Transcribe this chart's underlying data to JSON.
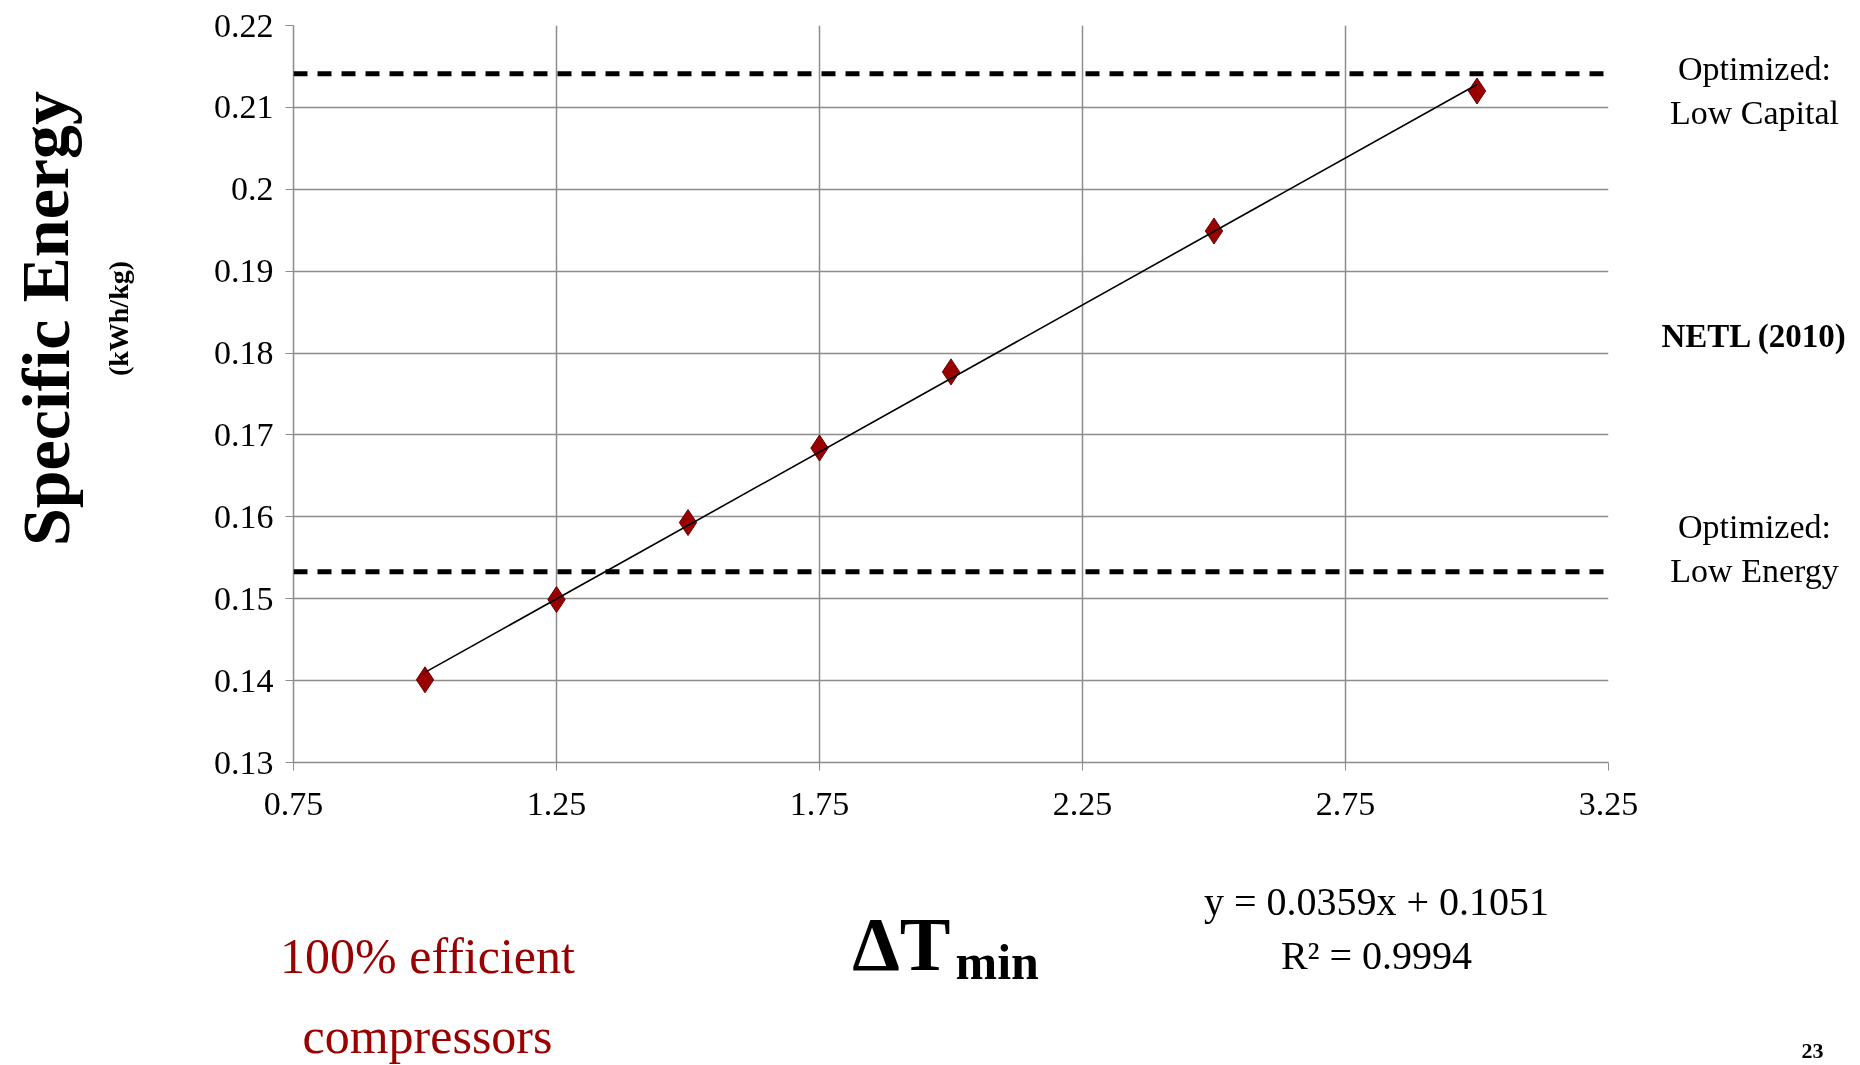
{
  "chart_data": {
    "type": "scatter",
    "xlabel": "ΔT$_{min}$",
    "ylabel": "Specific Energy (kWh/kg)",
    "xlim": [
      0.75,
      3.25
    ],
    "xticks": [
      0.75,
      1.25,
      1.75,
      2.25,
      2.75,
      3.25
    ],
    "ylim": [
      0.13,
      0.22
    ],
    "yticks": [
      0.13,
      0.14,
      0.15,
      0.16,
      0.17,
      0.18,
      0.19,
      0.2,
      0.21,
      0.22
    ],
    "grid": true,
    "marker": "diamond",
    "series": [
      {
        "type": "scatter",
        "color": "#990000",
        "x": [
          1,
          1.25,
          1.5,
          1.75,
          2,
          2.5,
          3
        ],
        "values": [
          0.1401,
          0.1499,
          0.1593,
          0.1684,
          0.1777,
          0.1949,
          0.212
        ]
      },
      {
        "type": "line",
        "color": "#000000",
        "line_style": "solid",
        "marker": "none",
        "x": [
          1,
          3
        ],
        "values": [
          0.141,
          0.2128
        ]
      }
    ],
    "ref_lines": [
      {
        "axis": "y",
        "value": 0.2141,
        "color": "#000000",
        "line_style": "dashed"
      },
      {
        "axis": "y",
        "value": 0.1533,
        "color": "#000000",
        "line_style": "dashed"
      }
    ],
    "annotations": [
      "Optimized:\nLow Capital",
      "NETL (2010)",
      "Optimized:\nLow Energy",
      "y = 0.0359x + 0.1051\nR² = 0.9994",
      "100% efficient\ncompressors",
      "23"
    ]
  }
}
